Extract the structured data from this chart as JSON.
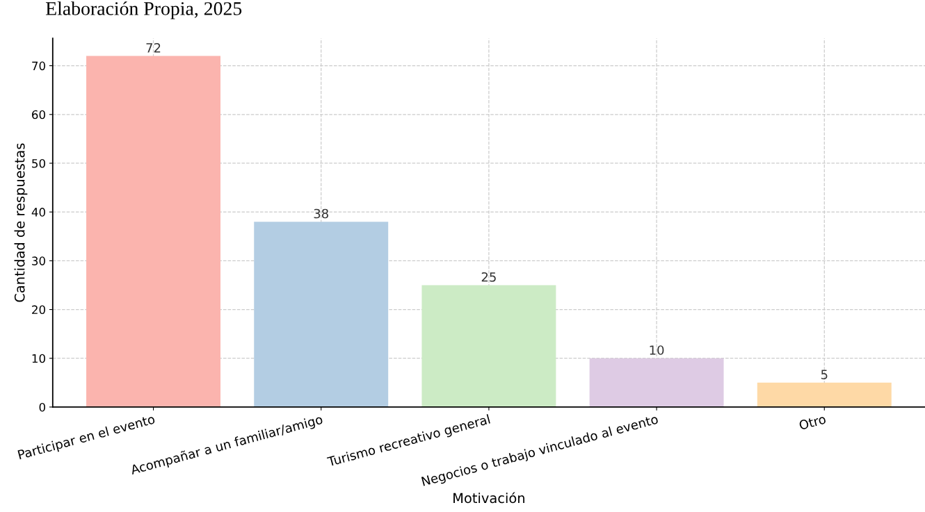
{
  "chart_data": {
    "type": "bar",
    "xlabel": "Motivación",
    "ylabel": "Cantidad de respuestas",
    "categories": [
      "Participar en el evento",
      "Acompañar a un familiar/amigo",
      "Turismo recreativo general",
      "Negocios o trabajo vinculado al evento",
      "Otro"
    ],
    "values": [
      72,
      38,
      25,
      10,
      5
    ],
    "colors": [
      "#fbb4ae",
      "#b3cde3",
      "#ccebc5",
      "#decbe4",
      "#fed9a6"
    ],
    "ylim": [
      0,
      75.6
    ],
    "yticks": [
      0,
      10,
      20,
      30,
      40,
      50,
      60,
      70
    ],
    "grid": true,
    "data_labels": true,
    "annotations": [
      "Elaboración Propia, 2025"
    ]
  }
}
